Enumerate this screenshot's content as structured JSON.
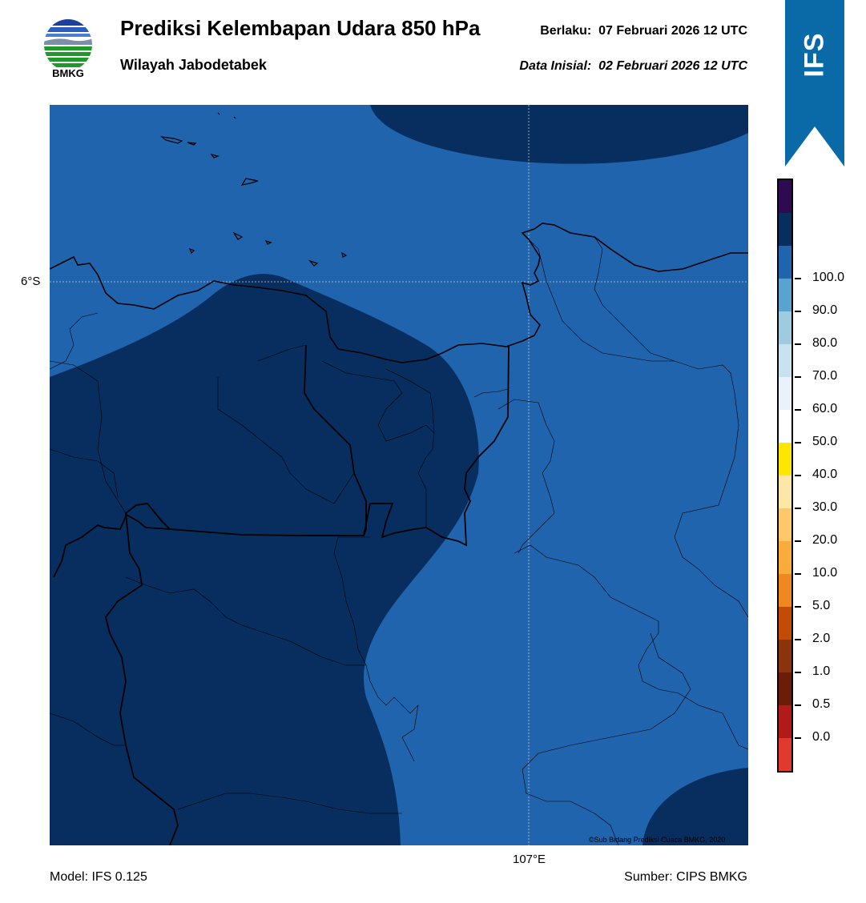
{
  "header": {
    "logo_text": "BMKG",
    "title": "Prediksi Kelembapan Udara 850 hPa",
    "subtitle": "Wilayah Jabodetabek",
    "valid_label": "Berlaku:",
    "valid_time": "07 Februari 2026 12 UTC",
    "init_label": "Data Inisial:",
    "init_time": "02 Februari 2026 12 UTC"
  },
  "ribbon": {
    "text": "IFS",
    "color": "#0a6aa8"
  },
  "map": {
    "lat_label": "6°S",
    "lon_label": "107°E",
    "copyright": "©Sub Bidang Prediksi Cuaca BMKG, 2020",
    "colors": {
      "humid_90_100": "#072e5e",
      "humid_80_90": "#2064ad"
    }
  },
  "footer": {
    "model": "Model: IFS 0.125",
    "source": "Sumber: CIPS BMKG"
  },
  "colorbar": {
    "segments": [
      "#e03a2d",
      "#b21a1a",
      "#6b1d0a",
      "#8b330a",
      "#c44a07",
      "#f0871f",
      "#f9ac3b",
      "#fcc86a",
      "#fde7a6",
      "#ffe600",
      "#ffffff",
      "#e9f2fb",
      "#c8e2f0",
      "#9fcbe0",
      "#5aa3cf",
      "#2064ad",
      "#072e5e",
      "#2d0a52"
    ],
    "labels": [
      "0.0",
      "0.5",
      "1.0",
      "2.0",
      "5.0",
      "10.0",
      "20.0",
      "30.0",
      "40.0",
      "50.0",
      "60.0",
      "70.0",
      "80.0",
      "90.0",
      "100.0"
    ]
  }
}
